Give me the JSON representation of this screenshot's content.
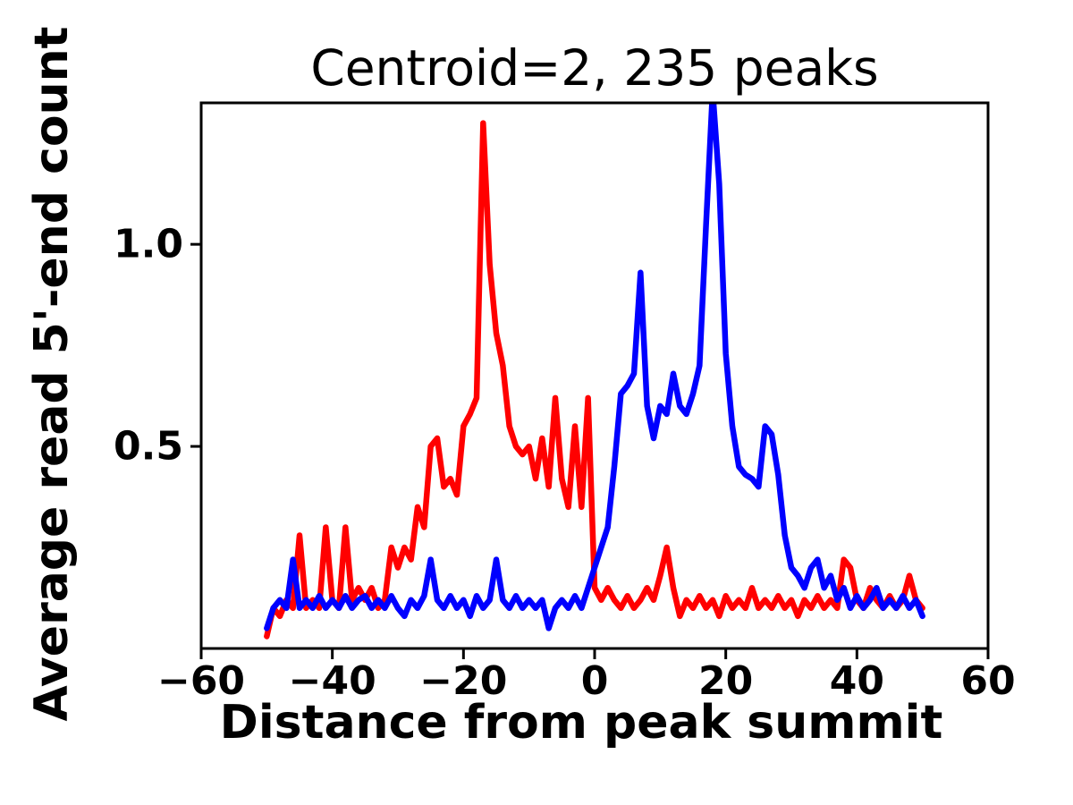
{
  "figure": {
    "title": "Centroid=2, 235 peaks",
    "xlabel": "Distance from peak summit",
    "ylabel": "Average read 5'-end count"
  },
  "chart_data": {
    "type": "line",
    "title": "Centroid=2, 235 peaks",
    "xlabel": "Distance from peak summit",
    "ylabel": "Average read 5'-end count",
    "xlim": [
      -60,
      60
    ],
    "ylim": [
      0,
      1.35
    ],
    "grid": false,
    "legend": "none",
    "xtick_values": [
      -60,
      -40,
      -20,
      0,
      20,
      40,
      60
    ],
    "xtick_labels": [
      "−60",
      "−40",
      "−20",
      "0",
      "20",
      "40",
      "60"
    ],
    "ytick_values": [
      0.5,
      1.0
    ],
    "ytick_labels": [
      "0.5",
      "1.0"
    ],
    "frame_color": "#000000",
    "x": [
      -50,
      -49,
      -48,
      -47,
      -46,
      -45,
      -44,
      -43,
      -42,
      -41,
      -40,
      -39,
      -38,
      -37,
      -36,
      -35,
      -34,
      -33,
      -32,
      -31,
      -30,
      -29,
      -28,
      -27,
      -26,
      -25,
      -24,
      -23,
      -22,
      -21,
      -20,
      -19,
      -18,
      -17,
      -16,
      -15,
      -14,
      -13,
      -12,
      -11,
      -10,
      -9,
      -8,
      -7,
      -6,
      -5,
      -4,
      -3,
      -2,
      -1,
      0,
      1,
      2,
      3,
      4,
      5,
      6,
      7,
      8,
      9,
      10,
      11,
      12,
      13,
      14,
      15,
      16,
      17,
      18,
      19,
      20,
      21,
      22,
      23,
      24,
      25,
      26,
      27,
      28,
      29,
      30,
      31,
      32,
      33,
      34,
      35,
      36,
      37,
      38,
      39,
      40,
      41,
      42,
      43,
      44,
      45,
      46,
      47,
      48,
      49,
      50
    ],
    "series": [
      {
        "name": "red-line",
        "color": "#ff0000",
        "values": [
          0.03,
          0.1,
          0.08,
          0.12,
          0.1,
          0.28,
          0.1,
          0.12,
          0.1,
          0.3,
          0.12,
          0.1,
          0.3,
          0.12,
          0.15,
          0.12,
          0.15,
          0.1,
          0.12,
          0.25,
          0.2,
          0.25,
          0.22,
          0.35,
          0.3,
          0.5,
          0.52,
          0.4,
          0.42,
          0.38,
          0.55,
          0.58,
          0.62,
          1.3,
          0.95,
          0.78,
          0.7,
          0.55,
          0.5,
          0.48,
          0.5,
          0.42,
          0.52,
          0.4,
          0.62,
          0.42,
          0.35,
          0.55,
          0.35,
          0.62,
          0.15,
          0.12,
          0.15,
          0.12,
          0.1,
          0.13,
          0.1,
          0.12,
          0.15,
          0.12,
          0.18,
          0.25,
          0.15,
          0.08,
          0.12,
          0.1,
          0.13,
          0.1,
          0.12,
          0.08,
          0.13,
          0.1,
          0.12,
          0.1,
          0.15,
          0.1,
          0.12,
          0.1,
          0.13,
          0.1,
          0.12,
          0.08,
          0.12,
          0.1,
          0.13,
          0.1,
          0.12,
          0.1,
          0.22,
          0.2,
          0.12,
          0.1,
          0.15,
          0.12,
          0.1,
          0.13,
          0.1,
          0.12,
          0.18,
          0.12,
          0.1
        ]
      },
      {
        "name": "blue-line",
        "color": "#0000ff",
        "values": [
          0.05,
          0.1,
          0.12,
          0.1,
          0.22,
          0.1,
          0.12,
          0.1,
          0.13,
          0.1,
          0.12,
          0.1,
          0.13,
          0.1,
          0.12,
          0.13,
          0.1,
          0.12,
          0.1,
          0.13,
          0.1,
          0.08,
          0.12,
          0.1,
          0.13,
          0.22,
          0.12,
          0.1,
          0.13,
          0.1,
          0.12,
          0.08,
          0.13,
          0.1,
          0.12,
          0.22,
          0.12,
          0.1,
          0.13,
          0.1,
          0.12,
          0.1,
          0.12,
          0.05,
          0.1,
          0.12,
          0.1,
          0.13,
          0.1,
          0.15,
          0.2,
          0.25,
          0.3,
          0.45,
          0.63,
          0.65,
          0.68,
          0.93,
          0.6,
          0.52,
          0.6,
          0.58,
          0.68,
          0.6,
          0.58,
          0.63,
          0.7,
          1.05,
          1.38,
          1.15,
          0.73,
          0.55,
          0.45,
          0.43,
          0.42,
          0.4,
          0.55,
          0.53,
          0.43,
          0.28,
          0.2,
          0.18,
          0.15,
          0.2,
          0.22,
          0.15,
          0.18,
          0.12,
          0.15,
          0.1,
          0.13,
          0.1,
          0.12,
          0.15,
          0.1,
          0.12,
          0.1,
          0.13,
          0.1,
          0.12,
          0.08
        ]
      }
    ]
  }
}
